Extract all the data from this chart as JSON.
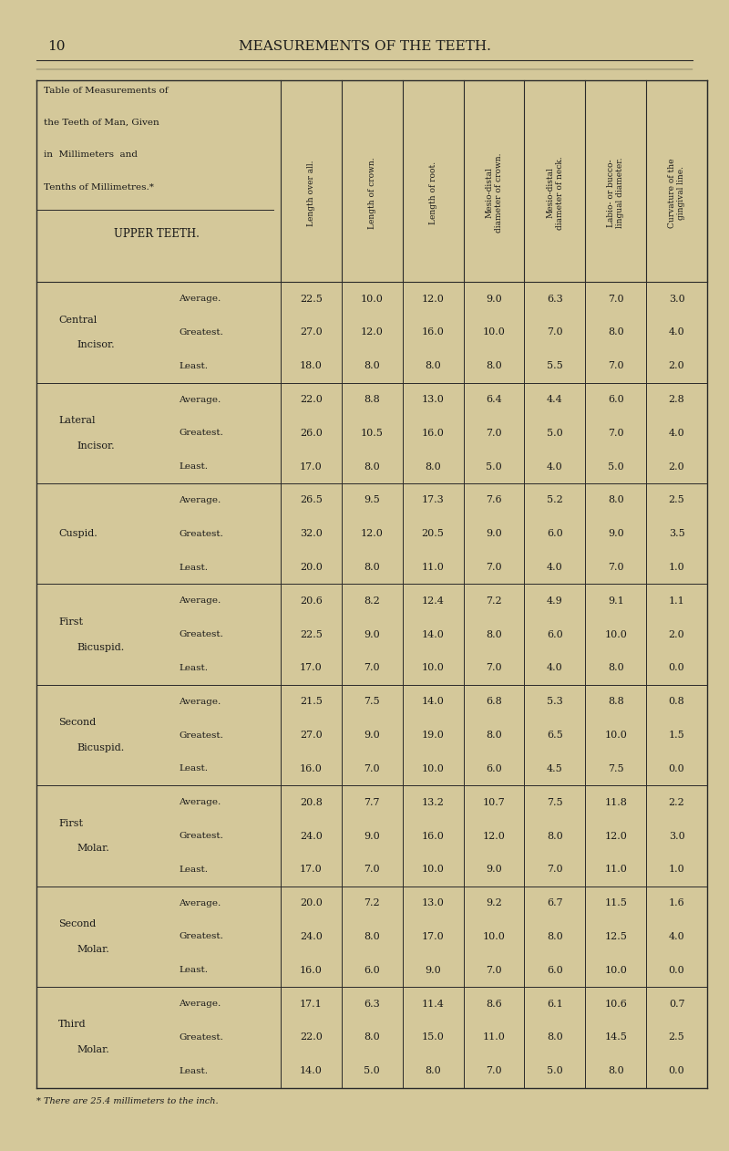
{
  "page_number": "10",
  "page_header": "MEASUREMENTS OF THE TEETH.",
  "bg_color": "#d4c89a",
  "title_lines": [
    "Table of Measurements of",
    "the Teeth of Man, Given",
    "in  Millimeters  and",
    "Tenths of Millimetres.*"
  ],
  "upper_teeth_label": "UPPER TEETH.",
  "col_headers": [
    "Length over all.",
    "Length of crown.",
    "Length of root.",
    "Mesio-distal\ndiameter of crown.",
    "Mesio-distal\ndiameter of neck.",
    "Labio- or bucco-\nlingual diameter.",
    "Curvature of the\ngingival line."
  ],
  "teeth": [
    {
      "name_line1": "Central",
      "name_line2": "Incisor.",
      "rows": [
        {
          "label": "Average.",
          "vals": [
            "22.5",
            "10.0",
            "12.0",
            "9.0",
            "6.3",
            "7.0",
            "3.0"
          ]
        },
        {
          "label": "Greatest.",
          "vals": [
            "27.0",
            "12.0",
            "16.0",
            "10.0",
            "7.0",
            "8.0",
            "4.0"
          ]
        },
        {
          "label": "Least.",
          "vals": [
            "18.0",
            "8.0",
            "8.0",
            "8.0",
            "5.5",
            "7.0",
            "2.0"
          ]
        }
      ]
    },
    {
      "name_line1": "Lateral",
      "name_line2": "Incisor.",
      "rows": [
        {
          "label": "Average.",
          "vals": [
            "22.0",
            "8.8",
            "13.0",
            "6.4",
            "4.4",
            "6.0",
            "2.8"
          ]
        },
        {
          "label": "Greatest.",
          "vals": [
            "26.0",
            "10.5",
            "16.0",
            "7.0",
            "5.0",
            "7.0",
            "4.0"
          ]
        },
        {
          "label": "Least.",
          "vals": [
            "17.0",
            "8.0",
            "8.0",
            "5.0",
            "4.0",
            "5.0",
            "2.0"
          ]
        }
      ]
    },
    {
      "name_line1": "Cuspid.",
      "name_line2": "",
      "rows": [
        {
          "label": "Average.",
          "vals": [
            "26.5",
            "9.5",
            "17.3",
            "7.6",
            "5.2",
            "8.0",
            "2.5"
          ]
        },
        {
          "label": "Greatest.",
          "vals": [
            "32.0",
            "12.0",
            "20.5",
            "9.0",
            "6.0",
            "9.0",
            "3.5"
          ]
        },
        {
          "label": "Least.",
          "vals": [
            "20.0",
            "8.0",
            "11.0",
            "7.0",
            "4.0",
            "7.0",
            "1.0"
          ]
        }
      ]
    },
    {
      "name_line1": "First",
      "name_line2": "Bicuspid.",
      "rows": [
        {
          "label": "Average.",
          "vals": [
            "20.6",
            "8.2",
            "12.4",
            "7.2",
            "4.9",
            "9.1",
            "1.1"
          ]
        },
        {
          "label": "Greatest.",
          "vals": [
            "22.5",
            "9.0",
            "14.0",
            "8.0",
            "6.0",
            "10.0",
            "2.0"
          ]
        },
        {
          "label": "Least.",
          "vals": [
            "17.0",
            "7.0",
            "10.0",
            "7.0",
            "4.0",
            "8.0",
            "0.0"
          ]
        }
      ]
    },
    {
      "name_line1": "Second",
      "name_line2": "Bicuspid.",
      "rows": [
        {
          "label": "Average.",
          "vals": [
            "21.5",
            "7.5",
            "14.0",
            "6.8",
            "5.3",
            "8.8",
            "0.8"
          ]
        },
        {
          "label": "Greatest.",
          "vals": [
            "27.0",
            "9.0",
            "19.0",
            "8.0",
            "6.5",
            "10.0",
            "1.5"
          ]
        },
        {
          "label": "Least.",
          "vals": [
            "16.0",
            "7.0",
            "10.0",
            "6.0",
            "4.5",
            "7.5",
            "0.0"
          ]
        }
      ]
    },
    {
      "name_line1": "First",
      "name_line2": "Molar.",
      "rows": [
        {
          "label": "Average.",
          "vals": [
            "20.8",
            "7.7",
            "13.2",
            "10.7",
            "7.5",
            "11.8",
            "2.2"
          ]
        },
        {
          "label": "Greatest.",
          "vals": [
            "24.0",
            "9.0",
            "16.0",
            "12.0",
            "8.0",
            "12.0",
            "3.0"
          ]
        },
        {
          "label": "Least.",
          "vals": [
            "17.0",
            "7.0",
            "10.0",
            "9.0",
            "7.0",
            "11.0",
            "1.0"
          ]
        }
      ]
    },
    {
      "name_line1": "Second",
      "name_line2": "Molar.",
      "rows": [
        {
          "label": "Average.",
          "vals": [
            "20.0",
            "7.2",
            "13.0",
            "9.2",
            "6.7",
            "11.5",
            "1.6"
          ]
        },
        {
          "label": "Greatest.",
          "vals": [
            "24.0",
            "8.0",
            "17.0",
            "10.0",
            "8.0",
            "12.5",
            "4.0"
          ]
        },
        {
          "label": "Least.",
          "vals": [
            "16.0",
            "6.0",
            "9.0",
            "7.0",
            "6.0",
            "10.0",
            "0.0"
          ]
        }
      ]
    },
    {
      "name_line1": "Third",
      "name_line2": "Molar.",
      "rows": [
        {
          "label": "Average.",
          "vals": [
            "17.1",
            "6.3",
            "11.4",
            "8.6",
            "6.1",
            "10.6",
            "0.7"
          ]
        },
        {
          "label": "Greatest.",
          "vals": [
            "22.0",
            "8.0",
            "15.0",
            "11.0",
            "8.0",
            "14.5",
            "2.5"
          ]
        },
        {
          "label": "Least.",
          "vals": [
            "14.0",
            "5.0",
            "8.0",
            "7.0",
            "5.0",
            "8.0",
            "0.0"
          ]
        }
      ]
    }
  ],
  "footnote": "* There are 25.4 millimeters to the inch.",
  "text_color": "#1a1a1a",
  "line_color": "#2a2a2a"
}
